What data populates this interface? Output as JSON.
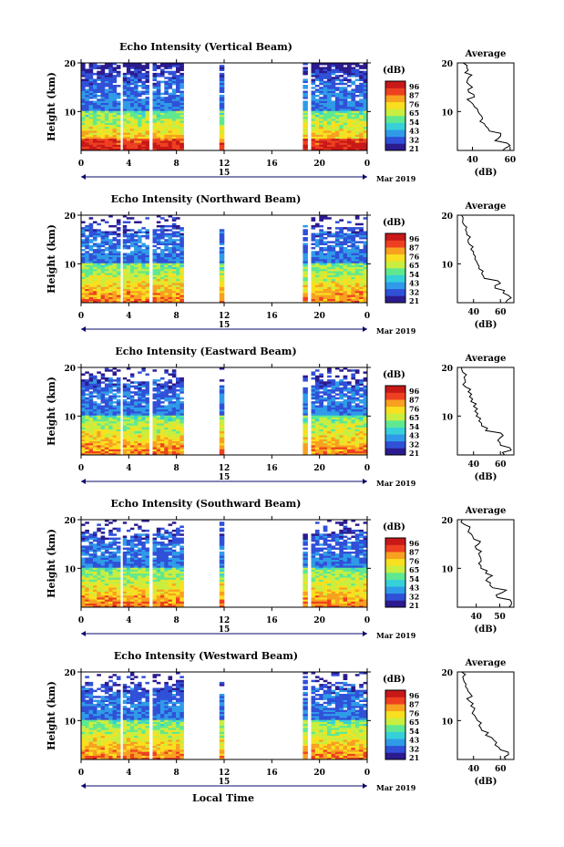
{
  "figure": {
    "xlabel": "Local Time",
    "date_label": "15",
    "month_label": "Mar 2019",
    "ylabel": "Height (km)",
    "profile_xlabel": "(dB)",
    "profile_title": "Average",
    "colorbar_label": "(dB)",
    "colorbar_ticks": [
      "96",
      "87",
      "76",
      "65",
      "54",
      "43",
      "32",
      "21"
    ],
    "colorbar_colors": [
      "#2b1b8f",
      "#3050d8",
      "#2f9be8",
      "#35d0d8",
      "#5fe890",
      "#c8ee40",
      "#f8e020",
      "#f8a020",
      "#ee4020",
      "#c81818"
    ]
  },
  "chart_data": [
    {
      "type": "heatmap",
      "title": "Echo Intensity (Vertical Beam)",
      "xlabel": "Local Time",
      "ylabel": "Height (km)",
      "x_ticks": [
        "0",
        "4",
        "8",
        "12",
        "16",
        "20",
        "0"
      ],
      "y_ticks": [
        "20",
        "10"
      ],
      "xlim": [
        0,
        24
      ],
      "ylim": [
        2,
        20
      ],
      "colorbar": {
        "label": "(dB)",
        "ticks": [
          96,
          87,
          76,
          65,
          54,
          43,
          32,
          21
        ]
      },
      "data_segments_hours": [
        [
          0,
          3.3
        ],
        [
          3.5,
          5.7
        ],
        [
          6.0,
          8.6
        ],
        [
          11.6,
          12.0
        ],
        [
          18.6,
          19.0
        ],
        [
          19.3,
          24
        ]
      ],
      "average_profile": {
        "title": "Average",
        "xlabel": "(dB)",
        "x_ticks": [
          "40",
          "60"
        ],
        "xlim": [
          32,
          62
        ],
        "y_ticks": [
          "20",
          "10"
        ],
        "ylim": [
          2,
          20
        ],
        "height_km": [
          2,
          3,
          4,
          5,
          6,
          7,
          8,
          9,
          10,
          11,
          12,
          13,
          14,
          15,
          16,
          17,
          18,
          19,
          20
        ],
        "db": [
          56,
          60,
          52,
          55,
          49,
          47,
          44,
          45,
          43,
          41,
          39,
          41,
          38,
          40,
          37,
          38,
          36,
          37,
          35
        ]
      }
    },
    {
      "type": "heatmap",
      "title": "Echo Intensity (Northward Beam)",
      "xlabel": "Local Time",
      "ylabel": "Height (km)",
      "x_ticks": [
        "0",
        "4",
        "8",
        "12",
        "16",
        "20",
        "0"
      ],
      "y_ticks": [
        "20",
        "10"
      ],
      "xlim": [
        0,
        24
      ],
      "ylim": [
        2,
        20
      ],
      "colorbar": {
        "label": "(dB)",
        "ticks": [
          96,
          87,
          76,
          65,
          54,
          43,
          32,
          21
        ]
      },
      "data_segments_hours": [
        [
          0,
          3.3
        ],
        [
          3.5,
          5.7
        ],
        [
          6.0,
          8.6
        ],
        [
          11.6,
          12.0
        ],
        [
          18.6,
          19.0
        ],
        [
          19.3,
          24
        ]
      ],
      "average_profile": {
        "title": "Average",
        "xlabel": "(dB)",
        "x_ticks": [
          "40",
          "60"
        ],
        "xlim": [
          28,
          70
        ],
        "y_ticks": [
          "20",
          "10"
        ],
        "ylim": [
          2,
          20
        ],
        "height_km": [
          2,
          3,
          4,
          5,
          6,
          7,
          8,
          9,
          10,
          11,
          12,
          13,
          14,
          15,
          16,
          17,
          18,
          19,
          20
        ],
        "db": [
          64,
          68,
          62,
          56,
          60,
          48,
          46,
          44,
          43,
          41,
          40,
          38,
          37,
          36,
          35,
          34,
          33,
          32,
          31
        ]
      }
    },
    {
      "type": "heatmap",
      "title": "Echo Intensity (Eastward Beam)",
      "xlabel": "Local Time",
      "ylabel": "Height (km)",
      "x_ticks": [
        "0",
        "4",
        "8",
        "12",
        "16",
        "20",
        "0"
      ],
      "y_ticks": [
        "20",
        "10"
      ],
      "xlim": [
        0,
        24
      ],
      "ylim": [
        2,
        20
      ],
      "colorbar": {
        "label": "(dB)",
        "ticks": [
          96,
          87,
          76,
          65,
          54,
          43,
          32,
          21
        ]
      },
      "data_segments_hours": [
        [
          0,
          3.3
        ],
        [
          3.5,
          5.7
        ],
        [
          6.0,
          8.6
        ],
        [
          11.6,
          12.0
        ],
        [
          18.6,
          19.0
        ],
        [
          19.3,
          24
        ]
      ],
      "average_profile": {
        "title": "Average",
        "xlabel": "(dB)",
        "x_ticks": [
          "40",
          "60"
        ],
        "xlim": [
          28,
          70
        ],
        "y_ticks": [
          "20",
          "10"
        ],
        "ylim": [
          2,
          20
        ],
        "height_km": [
          2,
          3,
          4,
          5,
          6,
          7,
          8,
          9,
          10,
          11,
          12,
          13,
          14,
          15,
          16,
          17,
          18,
          19,
          20
        ],
        "db": [
          63,
          68,
          60,
          58,
          62,
          49,
          46,
          44,
          42,
          41,
          40,
          38,
          37,
          36,
          34,
          34,
          33,
          32,
          31
        ]
      }
    },
    {
      "type": "heatmap",
      "title": "Echo Intensity (Southward Beam)",
      "xlabel": "Local Time",
      "ylabel": "Height (km)",
      "x_ticks": [
        "0",
        "4",
        "8",
        "12",
        "16",
        "20",
        "0"
      ],
      "y_ticks": [
        "20",
        "10"
      ],
      "xlim": [
        0,
        24
      ],
      "ylim": [
        2,
        20
      ],
      "colorbar": {
        "label": "(dB)",
        "ticks": [
          96,
          87,
          76,
          65,
          54,
          43,
          32,
          21
        ]
      },
      "data_segments_hours": [
        [
          0,
          3.3
        ],
        [
          3.5,
          5.7
        ],
        [
          6.0,
          8.6
        ],
        [
          11.6,
          12.0
        ],
        [
          18.6,
          19.0
        ],
        [
          19.3,
          24
        ]
      ],
      "average_profile": {
        "title": "Average",
        "xlabel": "(dB)",
        "x_ticks": [
          "40",
          "50"
        ],
        "xlim": [
          32,
          56
        ],
        "y_ticks": [
          "20",
          "10"
        ],
        "ylim": [
          2,
          20
        ],
        "height_km": [
          2,
          3,
          4,
          5,
          6,
          7,
          8,
          9,
          10,
          11,
          12,
          13,
          14,
          15,
          16,
          17,
          18,
          19,
          20
        ],
        "db": [
          54,
          55,
          49,
          51,
          47,
          46,
          45,
          44,
          42,
          41,
          42,
          41,
          40,
          41,
          39,
          38,
          37,
          35,
          34
        ]
      }
    },
    {
      "type": "heatmap",
      "title": "Echo Intensity (Westward Beam)",
      "xlabel": "Local Time",
      "ylabel": "Height (km)",
      "x_ticks": [
        "0",
        "4",
        "8",
        "12",
        "16",
        "20",
        "0"
      ],
      "y_ticks": [
        "20",
        "10"
      ],
      "xlim": [
        0,
        24
      ],
      "ylim": [
        2,
        20
      ],
      "colorbar": {
        "label": "(dB)",
        "ticks": [
          96,
          87,
          76,
          65,
          54,
          43,
          32,
          21
        ]
      },
      "data_segments_hours": [
        [
          0,
          3.3
        ],
        [
          3.5,
          5.7
        ],
        [
          6.0,
          8.6
        ],
        [
          11.6,
          12.0
        ],
        [
          18.6,
          19.0
        ],
        [
          19.3,
          24
        ]
      ],
      "average_profile": {
        "title": "Average",
        "xlabel": "(dB)",
        "x_ticks": [
          "40",
          "60"
        ],
        "xlim": [
          28,
          70
        ],
        "y_ticks": [
          "20",
          "10"
        ],
        "ylim": [
          2,
          20
        ],
        "height_km": [
          2,
          3,
          4,
          5,
          6,
          7,
          8,
          9,
          10,
          11,
          12,
          13,
          14,
          15,
          16,
          17,
          18,
          19,
          20
        ],
        "db": [
          64,
          66,
          60,
          56,
          55,
          49,
          46,
          44,
          43,
          41,
          40,
          38,
          37,
          39,
          36,
          34,
          33,
          32,
          31
        ]
      }
    }
  ]
}
